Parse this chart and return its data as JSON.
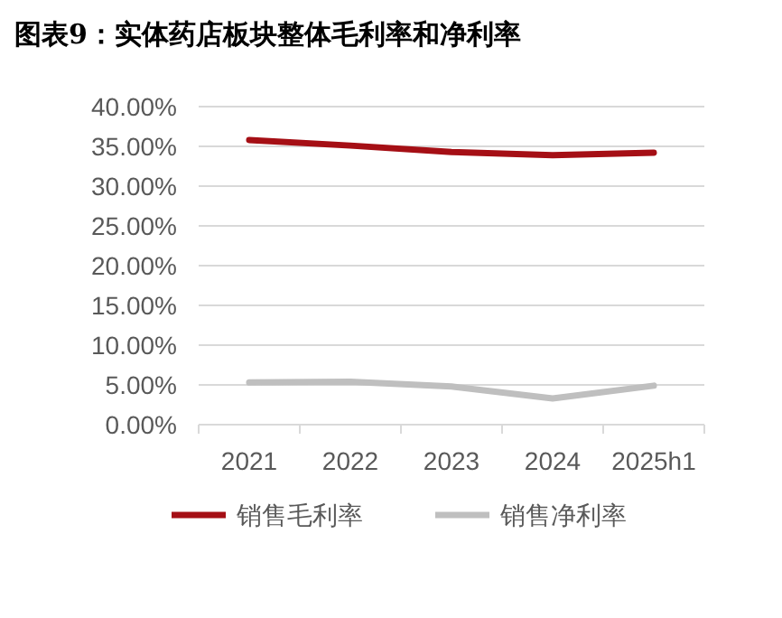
{
  "chart_data": {
    "type": "line",
    "title": "图表9：实体药店板块整体毛利率和净利率",
    "categories": [
      "2021",
      "2022",
      "2023",
      "2024",
      "2025h1"
    ],
    "series": [
      {
        "name": "销售毛利率",
        "color": "#a50f15",
        "values": [
          35.8,
          35.1,
          34.3,
          33.9,
          34.2
        ]
      },
      {
        "name": "销售净利率",
        "color": "#bfbfbf",
        "values": [
          5.3,
          5.4,
          4.8,
          3.3,
          4.9
        ]
      }
    ],
    "ylim": [
      0,
      40
    ],
    "yticks": [
      {
        "value": 0,
        "label": "0.00%"
      },
      {
        "value": 5,
        "label": "5.00%"
      },
      {
        "value": 10,
        "label": "10.00%"
      },
      {
        "value": 15,
        "label": "15.00%"
      },
      {
        "value": 20,
        "label": "20.00%"
      },
      {
        "value": 25,
        "label": "25.00%"
      },
      {
        "value": 30,
        "label": "30.00%"
      },
      {
        "value": 35,
        "label": "35.00%"
      },
      {
        "value": 40,
        "label": "40.00%"
      }
    ],
    "grid": "y",
    "legend": "bottom",
    "marker": "none",
    "line_style": "solid"
  }
}
